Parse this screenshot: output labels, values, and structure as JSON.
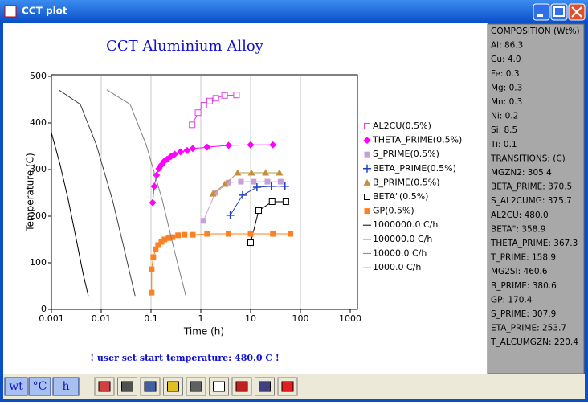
{
  "window": {
    "title": "CCT plot"
  },
  "chart_data": {
    "type": "line",
    "title": "CCT Aluminium Alloy",
    "x_label": "Time (h)",
    "y_label": "Temperature (C)",
    "x_scale": "log",
    "xlim": [
      0.001,
      1000
    ],
    "xticks": [
      0.001,
      0.01,
      0.1,
      1,
      10,
      100,
      1000
    ],
    "ylim": [
      0,
      500
    ],
    "yticks": [
      0,
      100,
      200,
      300,
      400,
      500
    ],
    "grid": "x",
    "legend": "right",
    "series": [
      {
        "name": "AL2CU(0.5%)",
        "color": "#e040e0",
        "marker": "open-square",
        "x": [
          0.67,
          0.88,
          1.15,
          1.5,
          2.0,
          3.0,
          5.2
        ],
        "values": [
          396,
          422,
          438,
          447,
          453,
          459,
          460
        ]
      },
      {
        "name": "THETA_PRIME(0.5%)",
        "color": "#ff00ff",
        "marker": "diamond",
        "x": [
          0.108,
          0.116,
          0.129,
          0.144,
          0.162,
          0.181,
          0.21,
          0.25,
          0.3,
          0.39,
          0.53,
          0.69,
          1.34,
          3.6,
          10,
          28
        ],
        "values": [
          229,
          264,
          288,
          302,
          310,
          317,
          322,
          328,
          333,
          338,
          341,
          345,
          348,
          352,
          353,
          353
        ]
      },
      {
        "name": "S_PRIME(0.5%)",
        "color": "#c8a0d8",
        "marker": "square",
        "x": [
          1.12,
          1.96,
          3.6,
          6.4,
          11.5,
          21.8,
          40
        ],
        "values": [
          190,
          250,
          272,
          274,
          274,
          274,
          274
        ]
      },
      {
        "name": "BETA_PRIME(0.5%)",
        "color": "#2040c0",
        "marker": "plus",
        "x": [
          3.9,
          6.9,
          13.4,
          26,
          49
        ],
        "values": [
          202,
          245,
          262,
          264,
          264
        ]
      },
      {
        "name": "B_PRIME(0.5%)",
        "color": "#c09040",
        "marker": "triangle",
        "x": [
          1.75,
          3.05,
          5.5,
          10.4,
          20,
          38
        ],
        "values": [
          248,
          269,
          293,
          293,
          293,
          293
        ]
      },
      {
        "name": "BETA\"(0.5%)",
        "color": "#000000",
        "marker": "open-square",
        "x": [
          10,
          14.5,
          27,
          51
        ],
        "values": [
          143,
          212,
          231,
          231
        ]
      },
      {
        "name": "GP(0.5%)",
        "color": "#ff8020",
        "marker": "square",
        "x": [
          0.103,
          0.103,
          0.111,
          0.124,
          0.139,
          0.162,
          0.187,
          0.227,
          0.27,
          0.35,
          0.47,
          0.69,
          1.34,
          3.6,
          10,
          28,
          63
        ],
        "values": [
          36,
          86,
          112,
          129,
          138,
          145,
          150,
          153,
          155,
          159,
          160,
          160,
          162,
          162,
          162,
          162,
          162
        ]
      },
      {
        "name": "1000000.0 C/h",
        "color": "#000000",
        "marker": "none",
        "x": [
          0.001,
          0.0015,
          0.0022,
          0.0032,
          0.0043,
          0.0055
        ],
        "values": [
          379,
          310,
          233,
          147,
          78,
          29
        ]
      },
      {
        "name": "100000.0 C/h",
        "color": "#404040",
        "marker": "none",
        "x": [
          0.0014,
          0.0038,
          0.008,
          0.017,
          0.029,
          0.048
        ],
        "values": [
          471,
          440,
          353,
          233,
          129,
          29
        ]
      },
      {
        "name": "10000.0 C/h",
        "color": "#808080",
        "marker": "none",
        "x": [
          0.013,
          0.038,
          0.08,
          0.17,
          0.29,
          0.5
        ],
        "values": [
          471,
          440,
          353,
          233,
          129,
          29
        ]
      },
      {
        "name": "1000.0 C/h",
        "color": "#b0b0b0",
        "marker": "none",
        "x": [],
        "values": []
      }
    ],
    "note": "! user set start temperature: 480.0 C !"
  },
  "panel": {
    "items": [
      "COMPOSITION (Wt%)",
      "Al: 86.3",
      "Cu: 4.0",
      "Fe: 0.3",
      "Mg: 0.3",
      "Mn: 0.3",
      "Ni: 0.2",
      "Si: 8.5",
      "Ti: 0.1",
      "TRANSITIONS: (C)",
      "MGZN2: 305.4",
      "BETA_PRIME: 370.5",
      "S_AL2CUMG: 375.7",
      "AL2CU: 480.0",
      "BETA\": 358.9",
      "THETA_PRIME: 367.3",
      "T_PRIME: 158.9",
      "MG2SI: 460.6",
      "B_PRIME: 380.6",
      "GP: 170.4",
      "S_PRIME: 307.9",
      "ETA_PRIME: 253.7",
      "T_ALCUMGZN: 220.4"
    ]
  },
  "toolbar": {
    "buttons": [
      "wt",
      "°C",
      "h"
    ]
  }
}
